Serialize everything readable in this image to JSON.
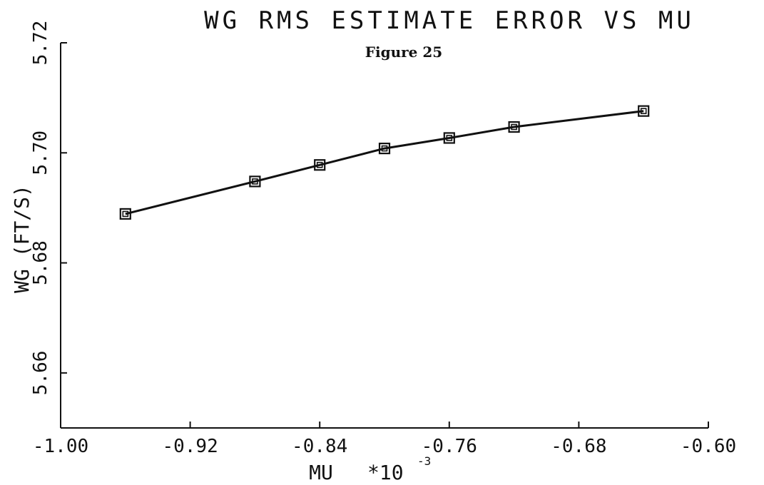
{
  "chart_data": {
    "type": "line",
    "title": "WG RMS ESTIMATE ERROR VS MU",
    "subtitle": "Figure 25",
    "xlabel": "MU",
    "xlabel_multiplier": "*10",
    "xlabel_exponent": "-3",
    "ylabel": "WG (FT/S)",
    "xlim": [
      -1.0,
      -0.6
    ],
    "ylim": [
      5.65,
      5.72
    ],
    "x_ticks": [
      -1.0,
      -0.92,
      -0.84,
      -0.76,
      -0.68,
      -0.6
    ],
    "x_tick_labels": [
      "-1.00",
      "-0.92",
      "-0.84",
      "-0.76",
      "-0.68",
      "-0.60"
    ],
    "y_ticks": [
      5.66,
      5.68,
      5.7,
      5.72
    ],
    "y_tick_labels": [
      "5.66",
      "5.68",
      "5.70",
      "5.72"
    ],
    "grid": false,
    "marker": "double-square",
    "color": "#111111",
    "x": [
      -0.96,
      -0.88,
      -0.84,
      -0.8,
      -0.76,
      -0.72,
      -0.64
    ],
    "y": [
      5.6889,
      5.6948,
      5.6978,
      5.7008,
      5.7027,
      5.7047,
      5.7076
    ]
  }
}
